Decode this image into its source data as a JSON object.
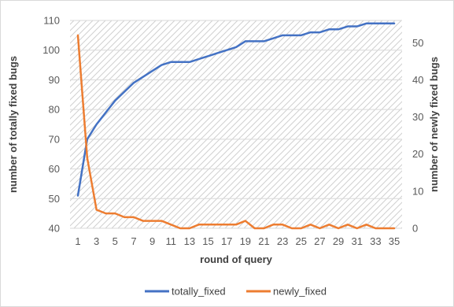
{
  "chart_data": {
    "type": "line",
    "title": "",
    "xlabel": "round of query",
    "ylabel_left": "number of totally fixed bugs",
    "ylabel_right": "number of newly fixed bugs",
    "x": [
      1,
      2,
      3,
      4,
      5,
      6,
      7,
      8,
      9,
      10,
      11,
      12,
      13,
      14,
      15,
      16,
      17,
      18,
      19,
      20,
      21,
      22,
      23,
      24,
      25,
      26,
      27,
      28,
      29,
      30,
      31,
      32,
      33,
      34,
      35
    ],
    "x_tick_labels": [
      "1",
      "3",
      "5",
      "7",
      "9",
      "11",
      "13",
      "15",
      "17",
      "19",
      "21",
      "23",
      "25",
      "27",
      "29",
      "31",
      "33",
      "35"
    ],
    "y_left_ticks": [
      "40",
      "50",
      "60",
      "70",
      "80",
      "90",
      "100",
      "110"
    ],
    "y_right_ticks": [
      "0",
      "10",
      "20",
      "30",
      "40",
      "50"
    ],
    "ylim_left": [
      40,
      110
    ],
    "ylim_right": [
      0,
      56
    ],
    "grid": "horizontal, hatched plot area",
    "legend_position": "bottom",
    "series": [
      {
        "name": "totally_fixed",
        "axis": "left",
        "color": "#4472c4",
        "values": [
          51,
          70,
          75,
          79,
          83,
          86,
          89,
          91,
          93,
          95,
          96,
          96,
          96,
          97,
          98,
          99,
          100,
          101,
          103,
          103,
          103,
          104,
          105,
          105,
          105,
          106,
          106,
          107,
          107,
          108,
          108,
          109,
          109,
          109,
          109
        ]
      },
      {
        "name": "newly_fixed",
        "axis": "right",
        "color": "#ed7d31",
        "values": [
          52,
          19,
          5,
          4,
          4,
          3,
          3,
          2,
          2,
          2,
          1,
          0,
          0,
          1,
          1,
          1,
          1,
          1,
          2,
          0,
          0,
          1,
          1,
          0,
          0,
          1,
          0,
          1,
          0,
          1,
          0,
          1,
          0,
          0,
          0
        ]
      }
    ]
  }
}
